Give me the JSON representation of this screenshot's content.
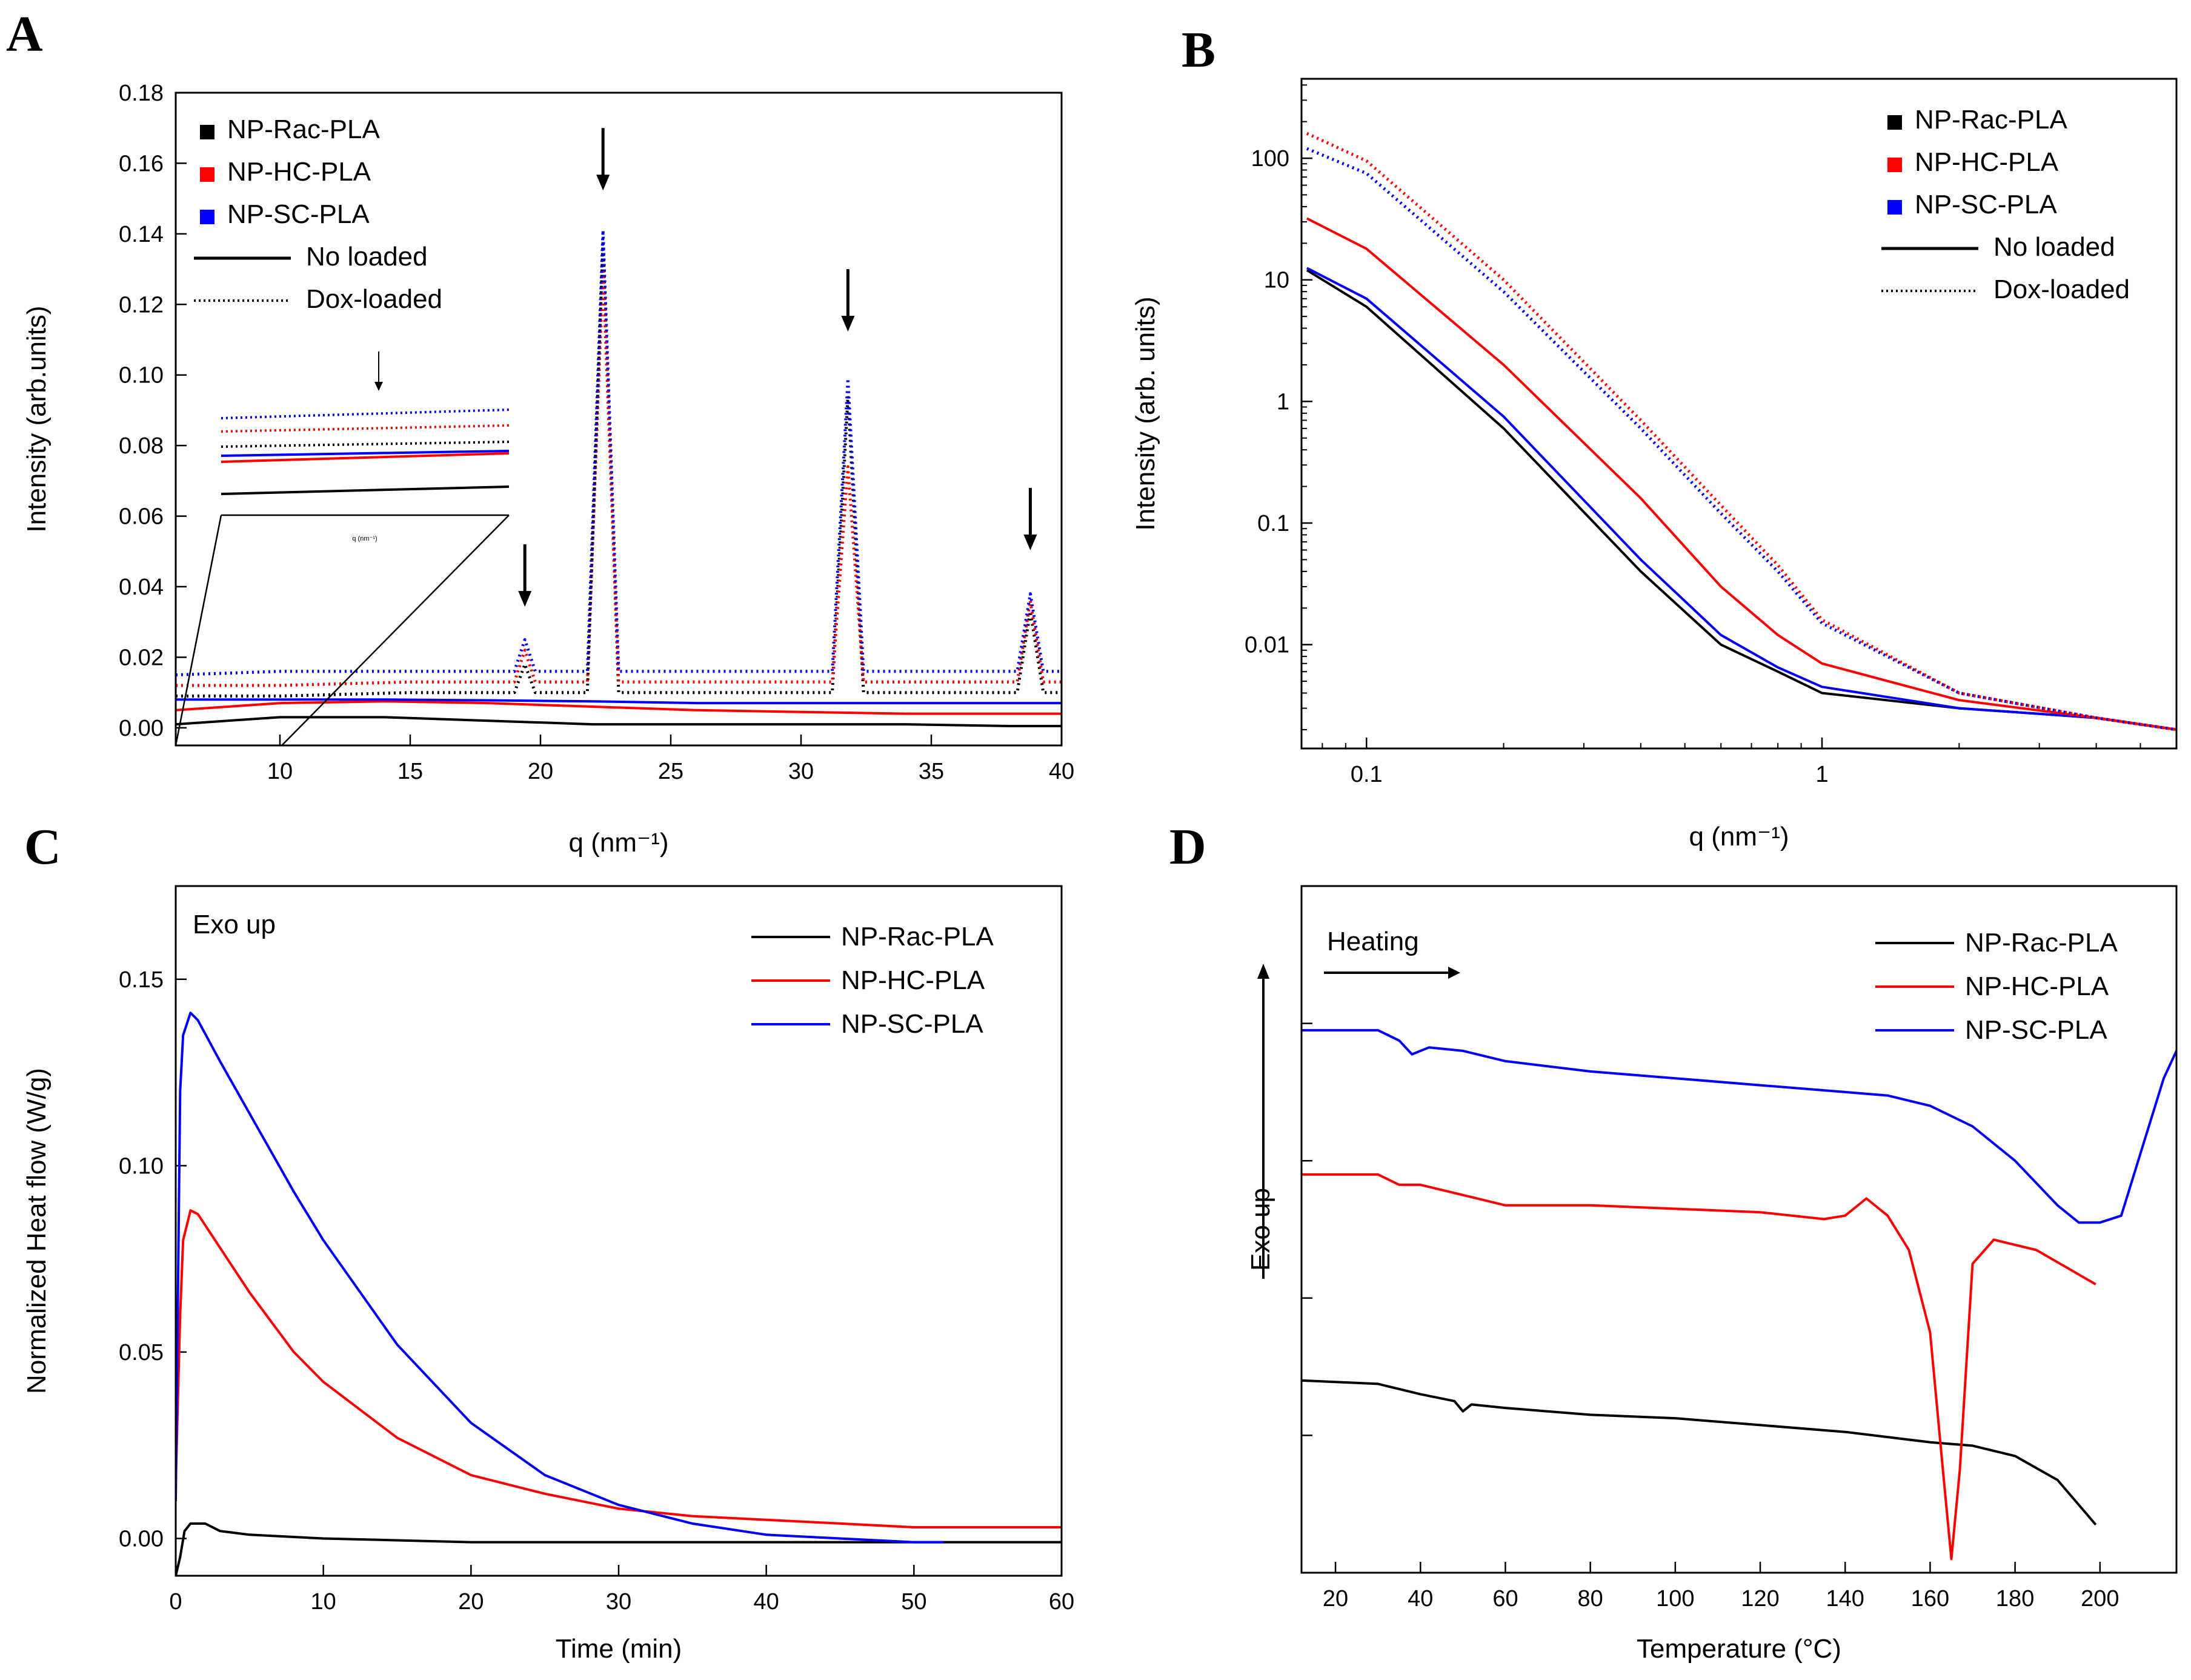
{
  "figure": {
    "colors": {
      "black": "#000000",
      "red": "#ff0000",
      "blue": "#0000ff"
    }
  },
  "chart_data": [
    {
      "panel": "A",
      "type": "line",
      "xlabel": "q (nm⁻¹)",
      "ylabel": "Intensity (arb.units)",
      "xlim": [
        6,
        40
      ],
      "ylim": [
        -0.005,
        0.18
      ],
      "xticks": [
        10,
        15,
        20,
        25,
        30,
        35,
        40
      ],
      "xtick_labels": [
        "10",
        "15",
        "20",
        "25",
        "30",
        "35",
        "40"
      ],
      "yticks": [
        0,
        0.02,
        0.04,
        0.06,
        0.08,
        0.1,
        0.12,
        0.14,
        0.16,
        0.18
      ],
      "ytick_labels": [
        "0.00",
        "0.02",
        "0.04",
        "0.06",
        "0.08",
        "0.10",
        "0.12",
        "0.14",
        "0.16",
        "0.18"
      ],
      "legend": {
        "markers": [
          {
            "label": "NP-Rac-PLA",
            "color": "#000000"
          },
          {
            "label": "NP-HC-PLA",
            "color": "#ff0000"
          },
          {
            "label": "NP-SC-PLA",
            "color": "#0000ff"
          }
        ],
        "styles": [
          {
            "label": "No loaded",
            "dash": "solid"
          },
          {
            "label": "Dox-loaded",
            "dash": "dotted"
          }
        ]
      },
      "peaks": [
        19.4,
        22.4,
        31.8,
        38.8
      ],
      "inset": {
        "xlabel": "q (nm⁻¹)"
      },
      "series": [
        {
          "name": "NP-Rac-PLA No loaded",
          "color": "#000000",
          "dash": "solid",
          "x": [
            6,
            8,
            10,
            14,
            18,
            22,
            26,
            30,
            34,
            38,
            40
          ],
          "y": [
            0.001,
            0.002,
            0.003,
            0.003,
            0.002,
            0.001,
            0.001,
            0.001,
            0.001,
            0.0005,
            0.0005
          ]
        },
        {
          "name": "NP-HC-PLA No loaded",
          "color": "#ff0000",
          "dash": "solid",
          "x": [
            6,
            8,
            10,
            14,
            18,
            22,
            26,
            30,
            34,
            38,
            40
          ],
          "y": [
            0.005,
            0.006,
            0.007,
            0.0075,
            0.007,
            0.006,
            0.005,
            0.0045,
            0.004,
            0.004,
            0.004
          ]
        },
        {
          "name": "NP-SC-PLA No loaded",
          "color": "#0000ff",
          "dash": "solid",
          "x": [
            6,
            8,
            10,
            14,
            18,
            22,
            26,
            30,
            34,
            38,
            40
          ],
          "y": [
            0.008,
            0.008,
            0.008,
            0.008,
            0.0078,
            0.0075,
            0.007,
            0.007,
            0.007,
            0.007,
            0.007
          ]
        },
        {
          "name": "NP-Rac-PLA Dox-loaded",
          "color": "#000000",
          "dash": "dotted",
          "x": [
            6,
            10,
            15,
            19,
            19.4,
            19.8,
            21.8,
            22.4,
            23.0,
            31.2,
            31.8,
            32.4,
            38.3,
            38.8,
            39.3,
            40
          ],
          "y": [
            0.009,
            0.009,
            0.01,
            0.01,
            0.018,
            0.01,
            0.01,
            0.138,
            0.01,
            0.01,
            0.094,
            0.01,
            0.01,
            0.033,
            0.01,
            0.01
          ]
        },
        {
          "name": "NP-HC-PLA Dox-loaded",
          "color": "#ff0000",
          "dash": "dotted",
          "x": [
            6,
            10,
            15,
            19,
            19.4,
            19.8,
            21.8,
            22.4,
            23.0,
            31.2,
            31.8,
            32.4,
            38.3,
            38.8,
            39.3,
            40
          ],
          "y": [
            0.012,
            0.012,
            0.013,
            0.013,
            0.022,
            0.013,
            0.013,
            0.13,
            0.013,
            0.013,
            0.074,
            0.013,
            0.013,
            0.036,
            0.013,
            0.013
          ]
        },
        {
          "name": "NP-SC-PLA Dox-loaded",
          "color": "#0000ff",
          "dash": "dotted",
          "x": [
            6,
            10,
            15,
            19,
            19.4,
            19.8,
            21.8,
            22.4,
            23.0,
            31.2,
            31.8,
            32.4,
            38.3,
            38.8,
            39.3,
            40
          ],
          "y": [
            0.015,
            0.016,
            0.016,
            0.016,
            0.025,
            0.016,
            0.016,
            0.141,
            0.016,
            0.016,
            0.099,
            0.016,
            0.016,
            0.038,
            0.016,
            0.016
          ]
        }
      ]
    },
    {
      "panel": "B",
      "type": "line",
      "xscale": "log",
      "yscale": "log",
      "xlabel": "q (nm⁻¹)",
      "ylabel": "Intensity (arb. units)",
      "xlim": [
        0.072,
        6.0
      ],
      "ylim": [
        0.0014,
        450
      ],
      "xticks": [
        0.1,
        1
      ],
      "xtick_labels": [
        "0.1",
        "1"
      ],
      "yticks": [
        0.01,
        0.1,
        1,
        10,
        100
      ],
      "ytick_labels": [
        "0.01",
        "0.1",
        "1",
        "10",
        "100"
      ],
      "legend": {
        "markers": [
          {
            "label": "NP-Rac-PLA",
            "color": "#000000"
          },
          {
            "label": "NP-HC-PLA",
            "color": "#ff0000"
          },
          {
            "label": "NP-SC-PLA",
            "color": "#0000ff"
          }
        ],
        "styles": [
          {
            "label": "No loaded",
            "dash": "solid"
          },
          {
            "label": "Dox-loaded",
            "dash": "dotted"
          }
        ]
      },
      "series": [
        {
          "name": "NP-Rac-PLA No loaded",
          "color": "#000000",
          "dash": "solid",
          "x": [
            0.074,
            0.1,
            0.2,
            0.4,
            0.6,
            0.8,
            1.0,
            2.0,
            4.0,
            6.0
          ],
          "y": [
            12,
            6,
            0.6,
            0.04,
            0.01,
            0.006,
            0.004,
            0.003,
            0.0025,
            0.002
          ]
        },
        {
          "name": "NP-SC-PLA No loaded",
          "color": "#0000ff",
          "dash": "solid",
          "x": [
            0.074,
            0.1,
            0.2,
            0.4,
            0.6,
            0.8,
            1.0,
            2.0,
            4.0,
            6.0
          ],
          "y": [
            12.5,
            7,
            0.75,
            0.05,
            0.012,
            0.0065,
            0.0045,
            0.003,
            0.0025,
            0.002
          ]
        },
        {
          "name": "NP-HC-PLA No loaded",
          "color": "#ff0000",
          "dash": "solid",
          "x": [
            0.074,
            0.1,
            0.2,
            0.4,
            0.6,
            0.8,
            1.0,
            2.0,
            4.0,
            6.0
          ],
          "y": [
            32,
            18,
            2,
            0.16,
            0.03,
            0.012,
            0.007,
            0.0035,
            0.0025,
            0.002
          ]
        },
        {
          "name": "NP-SC-PLA Dox-loaded",
          "color": "#0000ff",
          "dash": "dotted",
          "x": [
            0.074,
            0.1,
            0.2,
            0.4,
            0.6,
            0.8,
            1.0,
            2.0,
            4.0,
            6.0
          ],
          "y": [
            120,
            75,
            8,
            0.6,
            0.12,
            0.04,
            0.015,
            0.004,
            0.0025,
            0.002
          ]
        },
        {
          "name": "NP-HC-PLA Dox-loaded",
          "color": "#ff0000",
          "dash": "dotted",
          "x": [
            0.074,
            0.1,
            0.2,
            0.4,
            0.6,
            0.8,
            1.0,
            2.0,
            4.0,
            6.0
          ],
          "y": [
            160,
            95,
            10,
            0.7,
            0.14,
            0.045,
            0.016,
            0.004,
            0.0025,
            0.002
          ]
        }
      ]
    },
    {
      "panel": "C",
      "type": "line",
      "xlabel": "Time (min)",
      "ylabel": "Normalized Heat flow (W/g)",
      "annotation": "Exo up",
      "xlim": [
        0,
        60
      ],
      "ylim": [
        -0.01,
        0.175
      ],
      "xticks": [
        0,
        10,
        20,
        30,
        40,
        50,
        60
      ],
      "xtick_labels": [
        "0",
        "10",
        "20",
        "30",
        "40",
        "50",
        "60"
      ],
      "yticks": [
        0,
        0.05,
        0.1,
        0.15
      ],
      "ytick_labels": [
        "0.00",
        "0.05",
        "0.10",
        "0.15"
      ],
      "legend": [
        {
          "label": "NP-Rac-PLA",
          "color": "#000000"
        },
        {
          "label": "NP-HC-PLA",
          "color": "#ff0000"
        },
        {
          "label": "NP-SC-PLA",
          "color": "#0000ff"
        }
      ],
      "series": [
        {
          "name": "NP-Rac-PLA",
          "color": "#000000",
          "x": [
            0,
            0.3,
            0.6,
            1.0,
            2.0,
            3.0,
            5.0,
            10,
            20,
            30,
            40,
            50,
            60
          ],
          "y": [
            -0.01,
            -0.005,
            0.002,
            0.004,
            0.004,
            0.002,
            0.001,
            0.0,
            -0.001,
            -0.001,
            -0.001,
            -0.001,
            -0.001
          ]
        },
        {
          "name": "NP-HC-PLA",
          "color": "#ff0000",
          "x": [
            0,
            0.3,
            0.5,
            1.0,
            1.5,
            3,
            5,
            8,
            10,
            15,
            20,
            25,
            30,
            35,
            40,
            50,
            60
          ],
          "y": [
            0.015,
            0.06,
            0.08,
            0.088,
            0.087,
            0.078,
            0.066,
            0.05,
            0.042,
            0.027,
            0.017,
            0.012,
            0.008,
            0.006,
            0.005,
            0.003,
            0.003
          ]
        },
        {
          "name": "NP-SC-PLA",
          "color": "#0000ff",
          "x": [
            0,
            0.3,
            0.5,
            1.0,
            1.5,
            3,
            5,
            8,
            10,
            15,
            20,
            25,
            30,
            35,
            40,
            45,
            50,
            52
          ],
          "y": [
            0.01,
            0.12,
            0.135,
            0.141,
            0.139,
            0.128,
            0.114,
            0.093,
            0.08,
            0.052,
            0.031,
            0.017,
            0.009,
            0.004,
            0.001,
            0.0,
            -0.001,
            -0.001
          ]
        }
      ]
    },
    {
      "panel": "D",
      "type": "line",
      "xlabel": "Temperature (°C)",
      "ylabel": "Exo up",
      "annotation": "Heating",
      "xlim": [
        12,
        218
      ],
      "ylim": [
        0,
        1
      ],
      "xticks": [
        20,
        40,
        60,
        80,
        100,
        120,
        140,
        160,
        180,
        200
      ],
      "xtick_labels": [
        "20",
        "40",
        "60",
        "80",
        "100",
        "120",
        "140",
        "160",
        "180",
        "200"
      ],
      "yticks": [
        0.2,
        0.4,
        0.6,
        0.8
      ],
      "ytick_labels": [],
      "legend": [
        {
          "label": "NP-Rac-PLA",
          "color": "#000000"
        },
        {
          "label": "NP-HC-PLA",
          "color": "#ff0000"
        },
        {
          "label": "NP-SC-PLA",
          "color": "#0000ff"
        }
      ],
      "series": [
        {
          "name": "NP-Rac-PLA",
          "color": "#000000",
          "x": [
            12,
            30,
            40,
            48,
            50,
            52,
            60,
            80,
            100,
            120,
            140,
            160,
            170,
            180,
            190,
            199
          ],
          "y": [
            0.28,
            0.275,
            0.26,
            0.25,
            0.235,
            0.245,
            0.24,
            0.23,
            0.225,
            0.215,
            0.205,
            0.19,
            0.185,
            0.17,
            0.135,
            0.07
          ]
        },
        {
          "name": "NP-HC-PLA",
          "color": "#ff0000",
          "x": [
            12,
            30,
            35,
            40,
            50,
            60,
            80,
            100,
            120,
            135,
            140,
            145,
            150,
            155,
            160,
            163,
            165,
            167,
            170,
            175,
            185,
            199
          ],
          "y": [
            0.58,
            0.58,
            0.565,
            0.565,
            0.55,
            0.535,
            0.535,
            0.53,
            0.525,
            0.515,
            0.52,
            0.545,
            0.52,
            0.47,
            0.35,
            0.15,
            0.02,
            0.15,
            0.45,
            0.485,
            0.47,
            0.42
          ]
        },
        {
          "name": "NP-SC-PLA",
          "color": "#0000ff",
          "x": [
            12,
            30,
            35,
            38,
            42,
            50,
            60,
            80,
            100,
            120,
            140,
            150,
            160,
            170,
            180,
            190,
            195,
            200,
            205,
            210,
            215,
            218
          ],
          "y": [
            0.79,
            0.79,
            0.775,
            0.755,
            0.765,
            0.76,
            0.745,
            0.73,
            0.72,
            0.71,
            0.7,
            0.695,
            0.68,
            0.65,
            0.6,
            0.535,
            0.51,
            0.51,
            0.52,
            0.62,
            0.72,
            0.76
          ]
        }
      ]
    }
  ]
}
